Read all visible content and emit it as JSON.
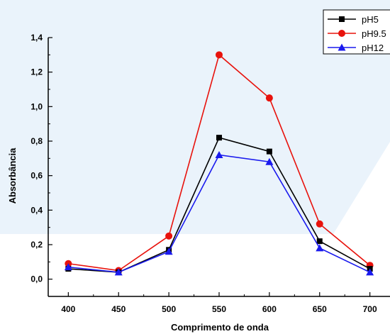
{
  "chart_data": {
    "type": "line",
    "xlabel": "Comprimento de onda",
    "ylabel": "Absorbância",
    "xlim": [
      380,
      720
    ],
    "ylim": [
      -0.1,
      1.4
    ],
    "x_ticks": [
      "400",
      "450",
      "500",
      "550",
      "600",
      "650",
      "700"
    ],
    "x_tick_values": [
      400,
      450,
      500,
      550,
      600,
      650,
      700
    ],
    "y_ticks": [
      "0,0",
      "0,2",
      "0,4",
      "0,6",
      "0,8",
      "1,0",
      "1,2",
      "1,4"
    ],
    "y_tick_values": [
      0,
      0.2,
      0.4,
      0.6,
      0.8,
      1.0,
      1.2,
      1.4
    ],
    "x": [
      400,
      450,
      500,
      550,
      600,
      650,
      700
    ],
    "legend_position": "top-right",
    "grid": false,
    "series": [
      {
        "name": "pH5",
        "values": [
          0.06,
          0.04,
          0.17,
          0.82,
          0.74,
          0.22,
          0.06
        ],
        "color": "#000000",
        "marker": "square"
      },
      {
        "name": "pH9.5",
        "values": [
          0.09,
          0.05,
          0.25,
          1.3,
          1.05,
          0.32,
          0.08
        ],
        "color": "#e8120c",
        "marker": "circle"
      },
      {
        "name": "pH12",
        "values": [
          0.07,
          0.04,
          0.16,
          0.72,
          0.68,
          0.18,
          0.04
        ],
        "color": "#1a1aee",
        "marker": "triangle"
      }
    ]
  }
}
